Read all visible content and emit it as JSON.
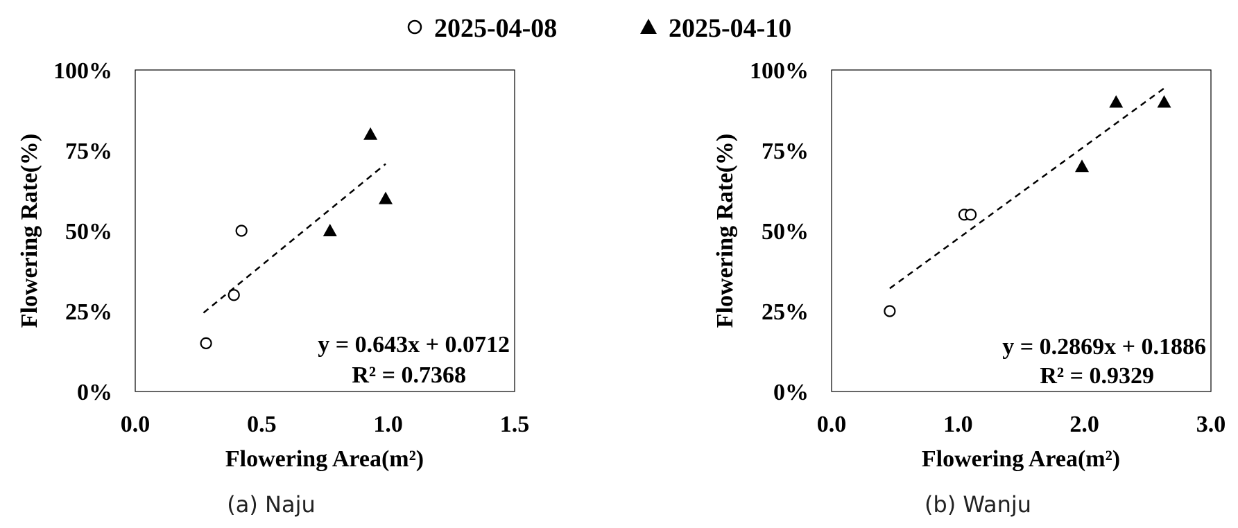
{
  "legend": {
    "items": [
      {
        "label": "2025-04-08",
        "marker": "open-circle"
      },
      {
        "label": "2025-04-10",
        "marker": "filled-triangle"
      }
    ]
  },
  "captions": [
    "(a) Naju",
    "(b) Wanju"
  ],
  "chart_data": [
    {
      "type": "scatter",
      "caption": "(a) Naju",
      "xlabel": "Flowering Area(m²)",
      "ylabel": "Flowering Rate(%)",
      "xlim": [
        0,
        1.5
      ],
      "ylim": [
        0,
        1
      ],
      "xticks": [
        "0.0",
        "0.5",
        "1.0",
        "1.5"
      ],
      "yticks": [
        "0%",
        "25%",
        "50%",
        "75%",
        "100%"
      ],
      "series": [
        {
          "name": "2025-04-08",
          "marker": "open-circle",
          "points": [
            [
              0.28,
              0.15
            ],
            [
              0.39,
              0.3
            ],
            [
              0.42,
              0.5
            ]
          ]
        },
        {
          "name": "2025-04-10",
          "marker": "filled-triangle",
          "points": [
            [
              0.77,
              0.5
            ],
            [
              0.93,
              0.8
            ],
            [
              0.99,
              0.6
            ]
          ]
        }
      ],
      "trendline": {
        "style": "dashed",
        "slope": 0.643,
        "intercept": 0.0712,
        "x_range": [
          0.27,
          0.99
        ]
      },
      "equation": "y = 0.643x + 0.0712",
      "r_squared": "R² = 0.7368",
      "grid": false
    },
    {
      "type": "scatter",
      "caption": "(b) Wanju",
      "xlabel": "Flowering Area(m²)",
      "ylabel": "Flowering Rate(%)",
      "xlim": [
        0,
        3
      ],
      "ylim": [
        0,
        1
      ],
      "xticks": [
        "0.0",
        "1.0",
        "2.0",
        "3.0"
      ],
      "yticks": [
        "0%",
        "25%",
        "50%",
        "75%",
        "100%"
      ],
      "series": [
        {
          "name": "2025-04-08",
          "marker": "open-circle",
          "points": [
            [
              0.46,
              0.25
            ],
            [
              1.05,
              0.55
            ],
            [
              1.1,
              0.55
            ]
          ]
        },
        {
          "name": "2025-04-10",
          "marker": "filled-triangle",
          "points": [
            [
              1.98,
              0.7
            ],
            [
              2.25,
              0.9
            ],
            [
              2.63,
              0.9
            ]
          ]
        }
      ],
      "trendline": {
        "style": "dashed",
        "slope": 0.2869,
        "intercept": 0.1886,
        "x_range": [
          0.46,
          2.63
        ]
      },
      "equation": "y = 0.2869x + 0.1886",
      "r_squared": "R² = 0.9329",
      "grid": false
    }
  ]
}
